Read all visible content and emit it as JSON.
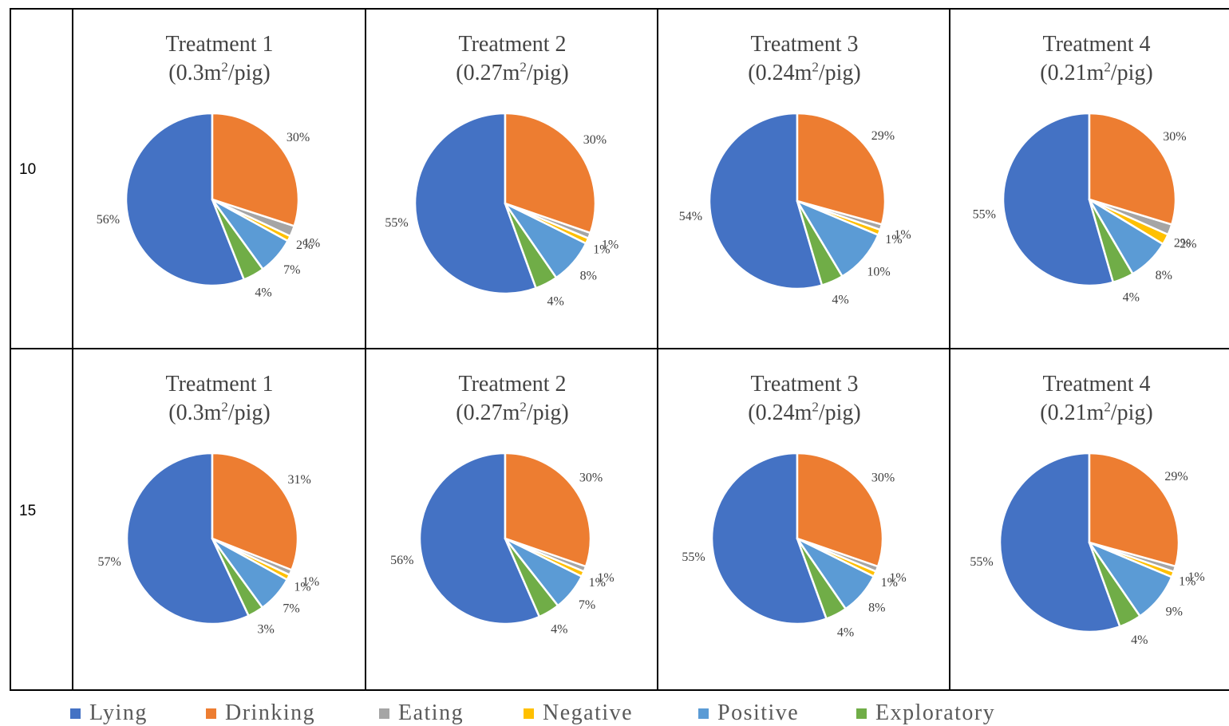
{
  "rows": [
    {
      "label": "10"
    },
    {
      "label": "15"
    }
  ],
  "legend": [
    {
      "name": "Lying",
      "color": "#4472C4"
    },
    {
      "name": "Drinking",
      "color": "#ED7D31"
    },
    {
      "name": "Eating",
      "color": "#A5A5A5"
    },
    {
      "name": "Negative",
      "color": "#FFC000"
    },
    {
      "name": "Positive",
      "color": "#5B9BD5"
    },
    {
      "name": "Exploratory",
      "color": "#70AD47"
    }
  ],
  "chart_data": [
    {
      "type": "pie",
      "row": "10",
      "title_line1": "Treatment 1",
      "title_pre": "(0.3m",
      "title_sup": "2",
      "title_post": "/pig)",
      "categories": [
        "Lying",
        "Drinking",
        "Eating",
        "Negative",
        "Positive",
        "Exploratory"
      ],
      "values": [
        56,
        30,
        2,
        1,
        7,
        4
      ],
      "labels": [
        "56%",
        "30%",
        "2%",
        "1%",
        "7%",
        "4%"
      ]
    },
    {
      "type": "pie",
      "row": "10",
      "title_line1": "Treatment 2",
      "title_pre": "(0.27m",
      "title_sup": "2",
      "title_post": "/pig)",
      "categories": [
        "Lying",
        "Drinking",
        "Eating",
        "Negative",
        "Positive",
        "Exploratory"
      ],
      "values": [
        55,
        30,
        1,
        1,
        8,
        4
      ],
      "labels": [
        "55%",
        "30%",
        "1%",
        "1%",
        "8%",
        "4%"
      ]
    },
    {
      "type": "pie",
      "row": "10",
      "title_line1": "Treatment 3",
      "title_pre": "(0.24m",
      "title_sup": "2",
      "title_post": "/pig)",
      "categories": [
        "Lying",
        "Drinking",
        "Eating",
        "Negative",
        "Positive",
        "Exploratory"
      ],
      "values": [
        54,
        29,
        1,
        1,
        10,
        4
      ],
      "labels": [
        "54%",
        "29%",
        "1%",
        "1%",
        "10%",
        "4%"
      ]
    },
    {
      "type": "pie",
      "row": "10",
      "title_line1": "Treatment 4",
      "title_pre": "(0.21m",
      "title_sup": "2",
      "title_post": "/pig)",
      "categories": [
        "Lying",
        "Drinking",
        "Eating",
        "Negative",
        "Positive",
        "Exploratory"
      ],
      "values": [
        55,
        30,
        2,
        2,
        8,
        4
      ],
      "labels": [
        "55%",
        "30%",
        "2%",
        "2%",
        "8%",
        "4%"
      ]
    },
    {
      "type": "pie",
      "row": "15",
      "title_line1": "Treatment 1",
      "title_pre": "(0.3m",
      "title_sup": "2",
      "title_post": "/pig)",
      "categories": [
        "Lying",
        "Drinking",
        "Eating",
        "Negative",
        "Positive",
        "Exploratory"
      ],
      "values": [
        57,
        31,
        1,
        1,
        7,
        3
      ],
      "labels": [
        "57%",
        "31%",
        "1%",
        "1%",
        "7%",
        "3%"
      ]
    },
    {
      "type": "pie",
      "row": "15",
      "title_line1": "Treatment 2",
      "title_pre": "(0.27m",
      "title_sup": "2",
      "title_post": "/pig)",
      "categories": [
        "Lying",
        "Drinking",
        "Eating",
        "Negative",
        "Positive",
        "Exploratory"
      ],
      "values": [
        56,
        30,
        1,
        1,
        7,
        4
      ],
      "labels": [
        "56%",
        "30%",
        "1%",
        "1%",
        "7%",
        "4%"
      ]
    },
    {
      "type": "pie",
      "row": "15",
      "title_line1": "Treatment 3",
      "title_pre": "(0.24m",
      "title_sup": "2",
      "title_post": "/pig)",
      "categories": [
        "Lying",
        "Drinking",
        "Eating",
        "Negative",
        "Positive",
        "Exploratory"
      ],
      "values": [
        55,
        30,
        1,
        1,
        8,
        4
      ],
      "labels": [
        "55%",
        "30%",
        "1%",
        "1%",
        "8%",
        "4%"
      ]
    },
    {
      "type": "pie",
      "row": "15",
      "title_line1": "Treatment 4",
      "title_pre": "(0.21m",
      "title_sup": "2",
      "title_post": "/pig)",
      "categories": [
        "Lying",
        "Drinking",
        "Eating",
        "Negative",
        "Positive",
        "Exploratory"
      ],
      "values": [
        55,
        29,
        1,
        1,
        9,
        4
      ],
      "labels": [
        "55%",
        "29%",
        "1%",
        "1%",
        "9%",
        "4%"
      ]
    }
  ]
}
